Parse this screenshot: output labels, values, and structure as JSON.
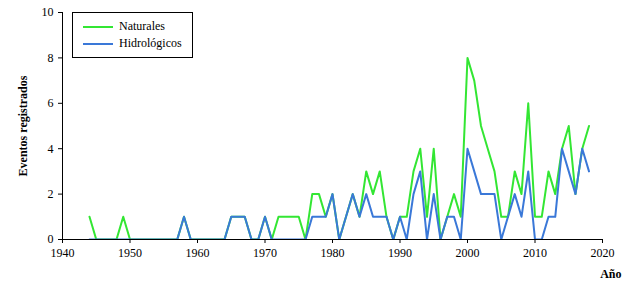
{
  "chart_data": {
    "type": "line",
    "xlabel": "Año",
    "ylabel": "Eventos registrados",
    "x": [
      1944,
      1945,
      1946,
      1947,
      1948,
      1949,
      1950,
      1951,
      1952,
      1953,
      1954,
      1955,
      1956,
      1957,
      1958,
      1959,
      1960,
      1961,
      1962,
      1963,
      1964,
      1965,
      1966,
      1967,
      1968,
      1969,
      1970,
      1971,
      1972,
      1973,
      1974,
      1975,
      1976,
      1977,
      1978,
      1979,
      1980,
      1981,
      1982,
      1983,
      1984,
      1985,
      1986,
      1987,
      1988,
      1989,
      1990,
      1991,
      1992,
      1993,
      1994,
      1995,
      1996,
      1997,
      1998,
      1999,
      2000,
      2001,
      2002,
      2003,
      2004,
      2005,
      2006,
      2007,
      2008,
      2009,
      2010,
      2011,
      2012,
      2013,
      2014,
      2015,
      2016,
      2017,
      2018
    ],
    "series": [
      {
        "name": "Naturales",
        "color": "#33e633",
        "values": [
          1,
          0,
          0,
          0,
          0,
          1,
          0,
          0,
          0,
          0,
          0,
          0,
          0,
          0,
          1,
          0,
          0,
          0,
          0,
          0,
          0,
          1,
          1,
          1,
          0,
          0,
          1,
          0,
          1,
          1,
          1,
          1,
          0,
          2,
          2,
          1,
          2,
          0,
          1,
          2,
          1,
          3,
          2,
          3,
          1,
          0,
          1,
          1,
          3,
          4,
          1,
          4,
          0,
          1,
          2,
          1,
          8,
          7,
          5,
          4,
          3,
          1,
          1,
          3,
          2,
          6,
          1,
          1,
          3,
          2,
          4,
          5,
          2,
          4,
          5
        ]
      },
      {
        "name": "Hidrológicos",
        "color": "#3a78d8",
        "values": [
          0,
          0,
          0,
          0,
          0,
          0,
          0,
          0,
          0,
          0,
          0,
          0,
          0,
          0,
          1,
          0,
          0,
          0,
          0,
          0,
          0,
          1,
          1,
          1,
          0,
          0,
          1,
          0,
          0,
          0,
          0,
          0,
          0,
          1,
          1,
          1,
          2,
          0,
          1,
          2,
          1,
          2,
          1,
          1,
          1,
          0,
          1,
          0,
          2,
          3,
          0,
          2,
          0,
          1,
          1,
          0,
          4,
          3,
          2,
          2,
          2,
          0,
          1,
          2,
          1,
          3,
          0,
          0,
          1,
          1,
          4,
          3,
          2,
          4,
          3
        ]
      }
    ],
    "xlim": [
      1940,
      2020
    ],
    "xticks": [
      1940,
      1950,
      1960,
      1970,
      1980,
      1990,
      2000,
      2010,
      2020
    ],
    "ylim": [
      0,
      10
    ],
    "yticks": [
      0,
      2,
      4,
      6,
      8,
      10
    ],
    "grid": false,
    "legend": "top-left"
  }
}
